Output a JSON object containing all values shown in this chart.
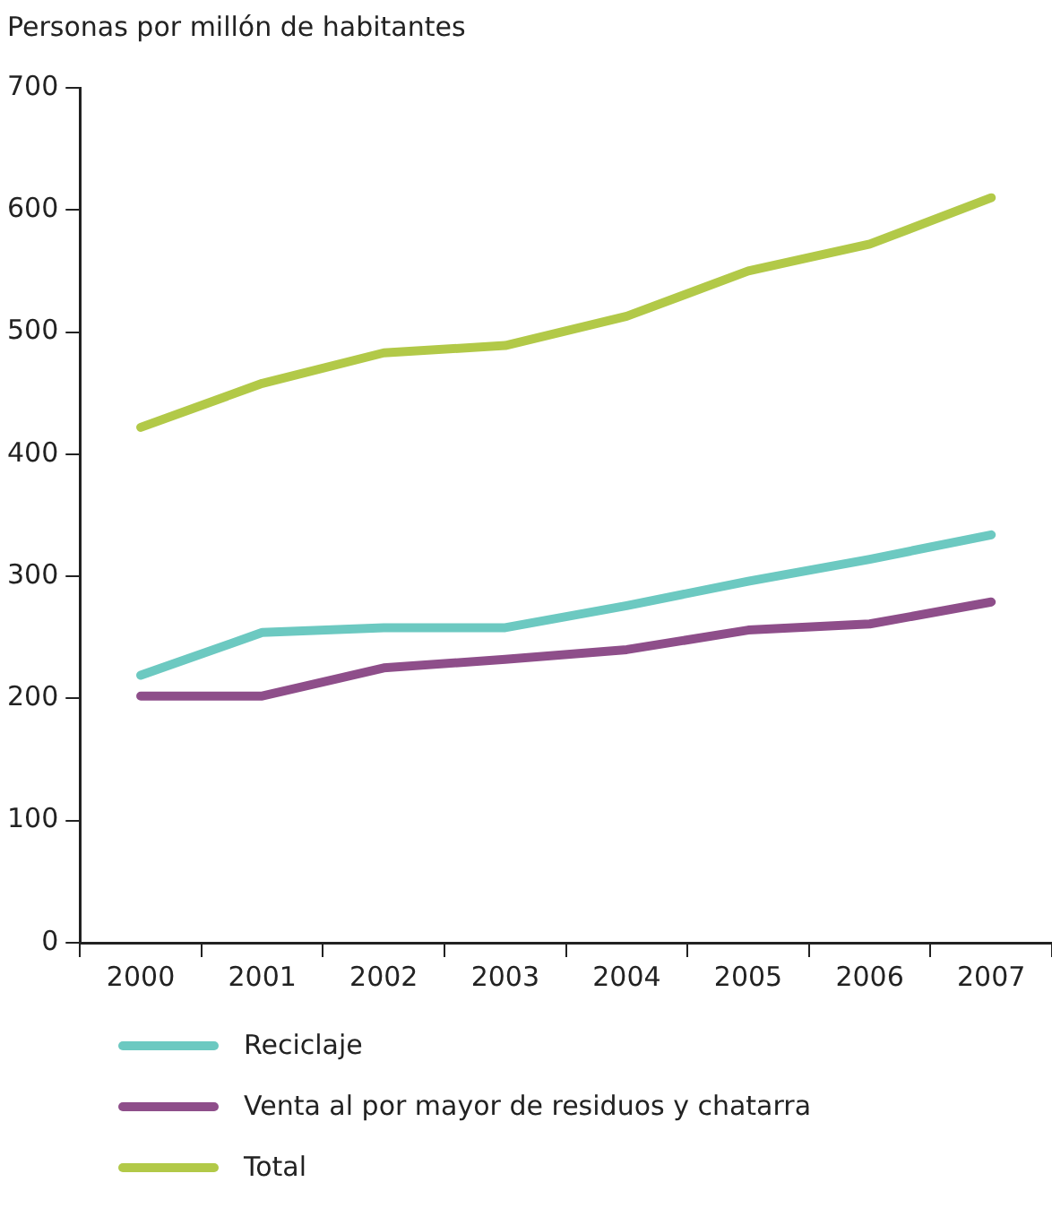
{
  "chart_data": {
    "type": "line",
    "ylabel": "Personas por millón de habitantes",
    "categories": [
      "2000",
      "2001",
      "2002",
      "2003",
      "2004",
      "2005",
      "2006",
      "2007"
    ],
    "series": [
      {
        "name": "Reciclaje",
        "color": "#6cc9c1",
        "values": [
          219,
          254,
          258,
          258,
          276,
          296,
          314,
          334
        ]
      },
      {
        "name": "Venta al por mayor de residuos y chatarra",
        "color": "#8e4e8a",
        "values": [
          202,
          202,
          225,
          232,
          240,
          256,
          261,
          279
        ]
      },
      {
        "name": "Total",
        "color": "#b2c948",
        "values": [
          422,
          458,
          483,
          489,
          513,
          550,
          572,
          610
        ]
      }
    ],
    "ylim": [
      0,
      700
    ],
    "yticks": [
      0,
      100,
      200,
      300,
      400,
      500,
      600,
      700
    ],
    "grid": false,
    "legend": "bottom",
    "marker": "none",
    "line_style": "solid"
  }
}
